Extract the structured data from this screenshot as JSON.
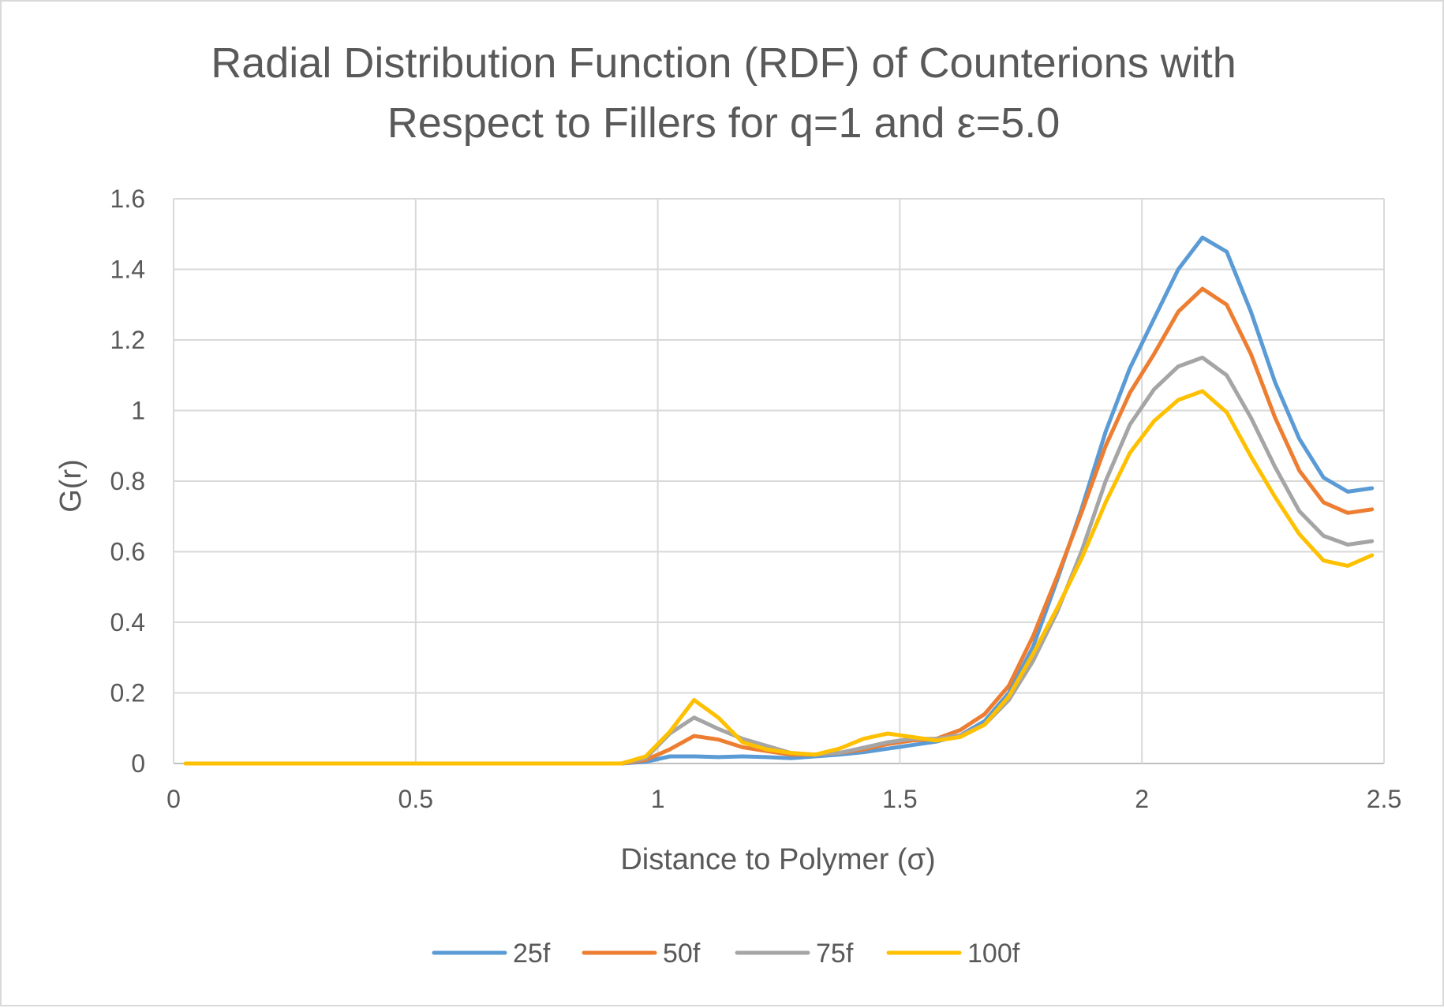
{
  "chart_data": {
    "type": "line",
    "title_lines": [
      "Radial Distribution Function (RDF) of Counterions with",
      "Respect to Fillers for q=1 and ε=5.0"
    ],
    "xlabel": "Distance to Polymer (σ)",
    "ylabel": "G(r)",
    "xlim": [
      0,
      2.5
    ],
    "ylim": [
      0,
      1.6
    ],
    "x_ticks": [
      "0",
      "0.5",
      "1",
      "1.5",
      "2",
      "2.5"
    ],
    "y_ticks": [
      "0",
      "0.2",
      "0.4",
      "0.6",
      "0.8",
      "1",
      "1.2",
      "1.4",
      "1.6"
    ],
    "grid": true,
    "legend_position": "bottom",
    "x": [
      0.025,
      0.075,
      0.125,
      0.175,
      0.225,
      0.275,
      0.325,
      0.375,
      0.425,
      0.475,
      0.525,
      0.575,
      0.625,
      0.675,
      0.725,
      0.775,
      0.825,
      0.875,
      0.925,
      0.975,
      1.025,
      1.075,
      1.125,
      1.175,
      1.225,
      1.275,
      1.325,
      1.375,
      1.425,
      1.475,
      1.525,
      1.575,
      1.625,
      1.675,
      1.725,
      1.775,
      1.825,
      1.875,
      1.925,
      1.975,
      2.025,
      2.075,
      2.125,
      2.175,
      2.225,
      2.275,
      2.325,
      2.375,
      2.425,
      2.475
    ],
    "series": [
      {
        "name": "25f",
        "color": "#5b9bd5",
        "values": [
          0,
          0,
          0,
          0,
          0,
          0,
          0,
          0,
          0,
          0,
          0,
          0,
          0,
          0,
          0,
          0,
          0,
          0,
          0,
          0.005,
          0.02,
          0.02,
          0.018,
          0.02,
          0.018,
          0.015,
          0.02,
          0.025,
          0.032,
          0.042,
          0.052,
          0.062,
          0.08,
          0.12,
          0.2,
          0.33,
          0.52,
          0.72,
          0.94,
          1.12,
          1.26,
          1.4,
          1.49,
          1.45,
          1.28,
          1.08,
          0.92,
          0.81,
          0.77,
          0.78
        ]
      },
      {
        "name": "50f",
        "color": "#ed7d31",
        "values": [
          0,
          0,
          0,
          0,
          0,
          0,
          0,
          0,
          0,
          0,
          0,
          0,
          0,
          0,
          0,
          0,
          0,
          0,
          0,
          0.01,
          0.04,
          0.078,
          0.068,
          0.046,
          0.035,
          0.025,
          0.025,
          0.03,
          0.04,
          0.055,
          0.065,
          0.07,
          0.095,
          0.14,
          0.22,
          0.36,
          0.53,
          0.71,
          0.9,
          1.05,
          1.16,
          1.28,
          1.345,
          1.3,
          1.16,
          0.98,
          0.83,
          0.74,
          0.71,
          0.72
        ]
      },
      {
        "name": "75f",
        "color": "#a5a5a5",
        "values": [
          0,
          0,
          0,
          0,
          0,
          0,
          0,
          0,
          0,
          0,
          0,
          0,
          0,
          0,
          0,
          0,
          0,
          0,
          0,
          0.015,
          0.085,
          0.13,
          0.098,
          0.07,
          0.05,
          0.03,
          0.025,
          0.03,
          0.045,
          0.06,
          0.07,
          0.07,
          0.08,
          0.11,
          0.18,
          0.29,
          0.43,
          0.6,
          0.8,
          0.96,
          1.06,
          1.125,
          1.15,
          1.1,
          0.98,
          0.84,
          0.715,
          0.645,
          0.62,
          0.63
        ]
      },
      {
        "name": "100f",
        "color": "#ffc000",
        "values": [
          0,
          0,
          0,
          0,
          0,
          0,
          0,
          0,
          0,
          0,
          0,
          0,
          0,
          0,
          0,
          0,
          0,
          0,
          0,
          0.02,
          0.09,
          0.18,
          0.13,
          0.06,
          0.04,
          0.03,
          0.025,
          0.042,
          0.07,
          0.085,
          0.075,
          0.065,
          0.075,
          0.11,
          0.19,
          0.31,
          0.44,
          0.58,
          0.74,
          0.88,
          0.97,
          1.03,
          1.055,
          0.995,
          0.87,
          0.755,
          0.65,
          0.575,
          0.56,
          0.59
        ]
      }
    ]
  }
}
